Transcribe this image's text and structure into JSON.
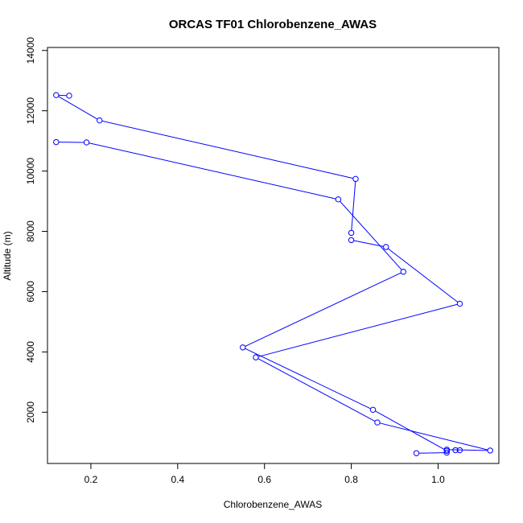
{
  "chart_data": {
    "type": "line",
    "title": "ORCAS TF01 Chlorobenzene_AWAS",
    "xlabel": "Chlorobenzene_AWAS",
    "ylabel": "Altitude (m)",
    "xlim": [
      0.1,
      1.14
    ],
    "ylim": [
      300,
      14100
    ],
    "x_ticks": [
      0.2,
      0.4,
      0.6,
      0.8,
      1.0
    ],
    "x_tick_labels": [
      "0.2",
      "0.4",
      "0.6",
      "0.8",
      "1.0"
    ],
    "y_ticks": [
      2000,
      4000,
      6000,
      8000,
      10000,
      12000,
      14000
    ],
    "y_tick_labels": [
      "2000",
      "4000",
      "6000",
      "8000",
      "10000",
      "12000",
      "14000"
    ],
    "grid": false,
    "colors": {
      "series": "#0000ff",
      "axis": "#000000"
    },
    "series": [
      {
        "marker": "open-circle",
        "points": [
          {
            "x": 0.95,
            "y": 640
          },
          {
            "x": 1.02,
            "y": 660
          },
          {
            "x": 1.02,
            "y": 760
          },
          {
            "x": 1.04,
            "y": 740
          },
          {
            "x": 1.05,
            "y": 740
          },
          {
            "x": 1.12,
            "y": 730
          },
          {
            "x": 0.86,
            "y": 1660
          },
          {
            "x": 0.58,
            "y": 3820
          },
          {
            "x": 1.05,
            "y": 5600
          },
          {
            "x": 0.55,
            "y": 4150
          },
          {
            "x": 0.92,
            "y": 6660
          },
          {
            "x": 0.8,
            "y": 7710
          },
          {
            "x": 0.8,
            "y": 7950
          },
          {
            "x": 0.81,
            "y": 9740
          },
          {
            "x": 0.22,
            "y": 11680
          },
          {
            "x": 0.12,
            "y": 12520
          },
          {
            "x": 0.15,
            "y": 12500
          }
        ],
        "segments": [
          [
            {
              "x": 0.95,
              "y": 640
            },
            {
              "x": 1.02,
              "y": 660
            }
          ],
          [
            {
              "x": 1.02,
              "y": 760
            },
            {
              "x": 1.12,
              "y": 730
            }
          ],
          [
            {
              "x": 1.12,
              "y": 730
            },
            {
              "x": 0.86,
              "y": 1660
            }
          ],
          [
            {
              "x": 0.86,
              "y": 1660
            },
            {
              "x": 0.58,
              "y": 3820
            }
          ],
          [
            {
              "x": 0.58,
              "y": 3820
            },
            {
              "x": 1.05,
              "y": 5600
            }
          ],
          [
            {
              "x": 1.05,
              "y": 5600
            },
            {
              "x": 0.88,
              "y": 7480
            }
          ],
          [
            {
              "x": 0.88,
              "y": 7480
            },
            {
              "x": 0.8,
              "y": 7710
            }
          ],
          [
            {
              "x": 0.8,
              "y": 7950
            },
            {
              "x": 0.81,
              "y": 9740
            }
          ],
          [
            {
              "x": 0.81,
              "y": 9740
            },
            {
              "x": 0.22,
              "y": 11680
            }
          ],
          [
            {
              "x": 0.22,
              "y": 11680
            },
            {
              "x": 0.12,
              "y": 12520
            }
          ],
          [
            {
              "x": 0.12,
              "y": 12520
            },
            {
              "x": 0.15,
              "y": 12500
            }
          ]
        ]
      },
      {
        "marker": "open-circle",
        "points": [
          {
            "x": 1.02,
            "y": 720
          },
          {
            "x": 0.85,
            "y": 2080
          },
          {
            "x": 0.88,
            "y": 7480
          },
          {
            "x": 0.77,
            "y": 9060
          },
          {
            "x": 0.19,
            "y": 10950
          },
          {
            "x": 0.12,
            "y": 10960
          }
        ],
        "segments": [
          [
            {
              "x": 1.02,
              "y": 720
            },
            {
              "x": 0.85,
              "y": 2080
            }
          ],
          [
            {
              "x": 0.85,
              "y": 2080
            },
            {
              "x": 0.55,
              "y": 4150
            }
          ],
          [
            {
              "x": 0.55,
              "y": 4150
            },
            {
              "x": 0.92,
              "y": 6660
            }
          ],
          [
            {
              "x": 0.92,
              "y": 6660
            },
            {
              "x": 0.77,
              "y": 9060
            }
          ],
          [
            {
              "x": 0.77,
              "y": 9060
            },
            {
              "x": 0.19,
              "y": 10950
            }
          ],
          [
            {
              "x": 0.19,
              "y": 10950
            },
            {
              "x": 0.12,
              "y": 10960
            }
          ]
        ]
      }
    ]
  }
}
